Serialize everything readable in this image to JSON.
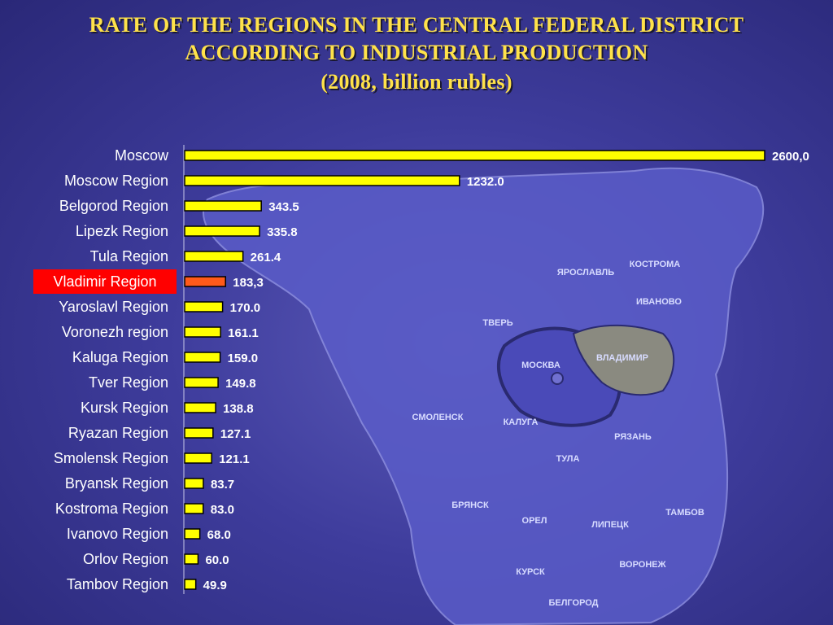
{
  "title_lines": [
    "RATE OF THE REGIONS IN THE CENTRAL FEDERAL DISTRICT",
    "ACCORDING TO INDUSTRIAL PRODUCTION",
    "(2008, billion rubles)"
  ],
  "colors": {
    "bar": "#ffff00",
    "highlight_bar": "#ff5a1a",
    "highlight_label_bg": "#ff0000",
    "title": "#ffe24a",
    "background": "#3e3c9c"
  },
  "map_labels": [
    "ЯРОСЛАВЛЬ",
    "КОСТРОМА",
    "ИВАНОВО",
    "ТВЕРЬ",
    "МОСКВА",
    "ВЛАДИМИР",
    "СМОЛЕНСК",
    "КАЛУГА",
    "РЯЗАНЬ",
    "ТУЛА",
    "БРЯНСК",
    "ОРЕЛ",
    "ЛИПЕЦК",
    "ТАМБОВ",
    "КУРСК",
    "ВОРОНЕЖ",
    "БЕЛГОРОД"
  ],
  "chart_data": {
    "type": "bar",
    "orientation": "horizontal",
    "categories": [
      "Moscow",
      "Moscow Region",
      "Belgorod Region",
      "Lipezk Region",
      "Tula Region",
      "Vladimir Region",
      "Yaroslavl Region",
      "Voronezh region",
      "Kaluga Region",
      "Tver Region",
      "Kursk Region",
      "Ryazan Region",
      "Smolensk Region",
      "Bryansk Region",
      "Kostroma Region",
      "Ivanovo Region",
      "Orlov Region",
      "Tambov Region"
    ],
    "values": [
      2600.0,
      1232.0,
      343.5,
      335.8,
      261.4,
      183.3,
      170.0,
      161.1,
      159.0,
      149.8,
      138.8,
      127.1,
      121.1,
      83.7,
      83.0,
      68.0,
      60.0,
      49.9
    ],
    "value_labels": [
      "2600,0",
      "1232.0",
      "343.5",
      "335.8",
      "261.4",
      "183,3",
      "170.0",
      "161.1",
      "159.0",
      "149.8",
      "138.8",
      "127.1",
      "121.1",
      "83.7",
      "83.0",
      "68.0",
      "60.0",
      "49.9"
    ],
    "highlight": "Vladimir Region",
    "xlim": [
      0,
      2600
    ],
    "grid": false,
    "legend": "none"
  }
}
